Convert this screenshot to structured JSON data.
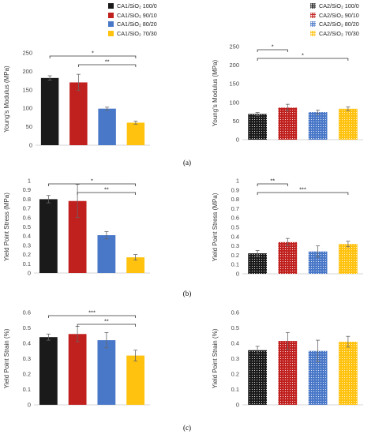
{
  "legend_left": {
    "items": [
      {
        "label": "CA1/SiO₂ 100/0",
        "color": "#1a1a1a"
      },
      {
        "label": "CA1/SiO₂ 90/10",
        "color": "#c0201e"
      },
      {
        "label": "CA1/SiO₂ 80/20",
        "color": "#4a78c8"
      },
      {
        "label": "CA1/SiO₂ 70/30",
        "color": "#ffc20e"
      }
    ]
  },
  "legend_right": {
    "items": [
      {
        "label": "CA2/SiO₂ 100/0",
        "color": "#1a1a1a"
      },
      {
        "label": "CA2/SiO₂ 90/10",
        "color": "#c0201e"
      },
      {
        "label": "CA2/SiO₂ 80/20",
        "color": "#4a78c8"
      },
      {
        "label": "CA2/SiO₂ 70/30",
        "color": "#ffc20e"
      }
    ]
  },
  "panel_labels": [
    "(a)",
    "(b)",
    "(c)"
  ],
  "chart_data": [
    {
      "id": "a-left",
      "type": "bar",
      "ylabel": "Young's Modulus (MPa)",
      "ylim": [
        0,
        250
      ],
      "ticks": [
        0,
        50,
        100,
        150,
        200,
        250
      ],
      "tick_labels": [
        "0",
        "50",
        "100",
        "150",
        "200",
        "250"
      ],
      "categories": [
        "CA1/SiO₂ 100/0",
        "CA1/SiO₂ 90/10",
        "CA1/SiO₂ 80/20",
        "CA1/SiO₂ 70/30"
      ],
      "values": [
        182,
        170,
        99,
        61
      ],
      "errors": [
        6,
        22,
        4,
        4
      ],
      "colors": [
        "#1a1a1a",
        "#c0201e",
        "#4a78c8",
        "#ffc20e"
      ],
      "hatched": false,
      "significance": [
        {
          "from": 0,
          "to": 3,
          "label": "*"
        },
        {
          "from": 1,
          "to": 3,
          "label": "**"
        }
      ]
    },
    {
      "id": "a-right",
      "type": "bar",
      "ylabel": "Young's Modulus (MPa)",
      "ylim": [
        0,
        250
      ],
      "ticks": [
        0,
        50,
        100,
        150,
        200,
        250
      ],
      "tick_labels": [
        "0",
        "50",
        "100",
        "150",
        "200",
        "250"
      ],
      "categories": [
        "CA2/SiO₂ 100/0",
        "CA2/SiO₂ 90/10",
        "CA2/SiO₂ 80/20",
        "CA2/SiO₂ 70/30"
      ],
      "values": [
        69,
        86,
        74,
        83
      ],
      "errors": [
        4,
        9,
        5,
        5
      ],
      "colors": [
        "#1a1a1a",
        "#c0201e",
        "#4a78c8",
        "#ffc20e"
      ],
      "hatched": true,
      "significance": [
        {
          "from": 0,
          "to": 1,
          "label": "*"
        },
        {
          "from": 0,
          "to": 3,
          "label": "*"
        }
      ]
    },
    {
      "id": "b-left",
      "type": "bar",
      "ylabel": "Yield Point Stress (MPa)",
      "ylim": [
        0,
        1
      ],
      "ticks": [
        0,
        0.1,
        0.2,
        0.3,
        0.4,
        0.5,
        0.6,
        0.7,
        0.8,
        0.9,
        1
      ],
      "tick_labels": [
        "0",
        "0.1",
        "0.2",
        "0.3",
        "0.4",
        "0.5",
        "0.6",
        "0.7",
        "0.8",
        "0.9",
        "1"
      ],
      "categories": [
        "CA1/SiO₂ 100/0",
        "CA1/SiO₂ 90/10",
        "CA1/SiO₂ 80/20",
        "CA1/SiO₂ 70/30"
      ],
      "values": [
        0.8,
        0.78,
        0.41,
        0.17
      ],
      "errors": [
        0.04,
        0.18,
        0.04,
        0.03
      ],
      "colors": [
        "#1a1a1a",
        "#c0201e",
        "#4a78c8",
        "#ffc20e"
      ],
      "hatched": false,
      "significance": [
        {
          "from": 0,
          "to": 3,
          "label": "*"
        },
        {
          "from": 1,
          "to": 3,
          "label": "**"
        }
      ]
    },
    {
      "id": "b-right",
      "type": "bar",
      "ylabel": "Yield Point Stress (MPa)",
      "ylim": [
        0,
        1
      ],
      "ticks": [
        0,
        0.1,
        0.2,
        0.3,
        0.4,
        0.5,
        0.6,
        0.7,
        0.8,
        0.9,
        1
      ],
      "tick_labels": [
        "0",
        "0.1",
        "0.2",
        "0.3",
        "0.4",
        "0.5",
        "0.6",
        "0.7",
        "0.8",
        "0.9",
        "1"
      ],
      "categories": [
        "CA2/SiO₂ 100/0",
        "CA2/SiO₂ 90/10",
        "CA2/SiO₂ 80/20",
        "CA2/SiO₂ 70/30"
      ],
      "values": [
        0.22,
        0.34,
        0.24,
        0.32
      ],
      "errors": [
        0.03,
        0.04,
        0.06,
        0.03
      ],
      "colors": [
        "#1a1a1a",
        "#c0201e",
        "#4a78c8",
        "#ffc20e"
      ],
      "hatched": true,
      "significance": [
        {
          "from": 0,
          "to": 1,
          "label": "**"
        },
        {
          "from": 0,
          "to": 3,
          "label": "***"
        }
      ]
    },
    {
      "id": "c-left",
      "type": "bar",
      "ylabel": "Yield Point Strain (%)",
      "ylim": [
        0,
        0.6
      ],
      "ticks": [
        0,
        0.1,
        0.2,
        0.3,
        0.4,
        0.5,
        0.6
      ],
      "tick_labels": [
        "0",
        "0.1",
        "0.2",
        "0.3",
        "0.4",
        "0.5",
        "0.6"
      ],
      "categories": [
        "CA1/SiO₂ 100/0",
        "CA1/SiO₂ 90/10",
        "CA1/SiO₂ 80/20",
        "CA1/SiO₂ 70/30"
      ],
      "values": [
        0.44,
        0.46,
        0.42,
        0.32
      ],
      "errors": [
        0.02,
        0.05,
        0.05,
        0.035
      ],
      "colors": [
        "#1a1a1a",
        "#c0201e",
        "#4a78c8",
        "#ffc20e"
      ],
      "hatched": false,
      "significance": [
        {
          "from": 0,
          "to": 3,
          "label": "***"
        },
        {
          "from": 1,
          "to": 3,
          "label": "**"
        }
      ]
    },
    {
      "id": "c-right",
      "type": "bar",
      "ylabel": "Yield Point Strain (%)",
      "ylim": [
        0,
        0.6
      ],
      "ticks": [
        0,
        0.1,
        0.2,
        0.3,
        0.4,
        0.5,
        0.6
      ],
      "tick_labels": [
        "0",
        "0.1",
        "0.2",
        "0.3",
        "0.4",
        "0.5",
        "0.6"
      ],
      "categories": [
        "CA2/SiO₂ 100/0",
        "CA2/SiO₂ 90/10",
        "CA2/SiO₂ 80/20",
        "CA2/SiO₂ 70/30"
      ],
      "values": [
        0.355,
        0.415,
        0.35,
        0.41
      ],
      "errors": [
        0.025,
        0.055,
        0.07,
        0.035
      ],
      "colors": [
        "#1a1a1a",
        "#c0201e",
        "#4a78c8",
        "#ffc20e"
      ],
      "hatched": true,
      "significance": []
    }
  ]
}
